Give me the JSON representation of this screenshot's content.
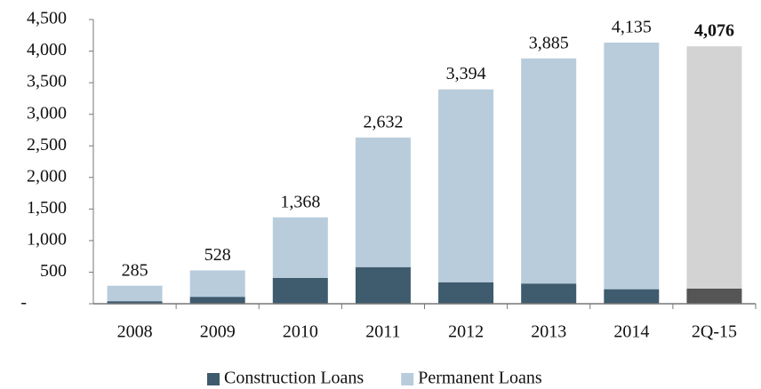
{
  "chart_data": {
    "type": "stacked_bar",
    "categories": [
      "2008",
      "2009",
      "2010",
      "2011",
      "2012",
      "2013",
      "2014",
      "2Q-15"
    ],
    "series": [
      {
        "name": "Construction Loans",
        "color": "#3f5b6e",
        "colors": [
          "#3f5b6e",
          "#3f5b6e",
          "#3f5b6e",
          "#3f5b6e",
          "#3f5b6e",
          "#3f5b6e",
          "#3f5b6e",
          "#555555"
        ],
        "values": [
          40,
          110,
          410,
          580,
          340,
          320,
          230,
          240
        ]
      },
      {
        "name": "Permanent Loans",
        "color": "#b8ccdc",
        "colors": [
          "#b8ccdc",
          "#b8ccdc",
          "#b8ccdc",
          "#b8ccdc",
          "#b8ccdc",
          "#b8ccdc",
          "#b8ccdc",
          "#d3d3d3"
        ],
        "values": [
          245,
          418,
          958,
          2052,
          3054,
          3565,
          3905,
          3836
        ]
      }
    ],
    "totals": [
      285,
      528,
      1368,
      2632,
      3394,
      3885,
      4135,
      4076
    ],
    "total_labels": [
      "285",
      "528",
      "1,368",
      "2,632",
      "3,394",
      "3,885",
      "4,135",
      "4,076"
    ],
    "bold_totals": [
      false,
      false,
      false,
      false,
      false,
      false,
      false,
      true
    ],
    "ylim": [
      0,
      4500
    ],
    "yticks": [
      {
        "value": 0,
        "label": "-"
      },
      500,
      {
        "value": 1000,
        "label": "1,000"
      },
      {
        "value": 1500,
        "label": "1,500"
      },
      {
        "value": 2000,
        "label": "2,000"
      },
      {
        "value": 2500,
        "label": "2,500"
      },
      {
        "value": 3000,
        "label": "3,000"
      },
      {
        "value": 3500,
        "label": "3,500"
      },
      {
        "value": 4000,
        "label": "4,000"
      },
      {
        "value": 4500,
        "label": "4,500"
      }
    ],
    "legend": "bottom"
  }
}
